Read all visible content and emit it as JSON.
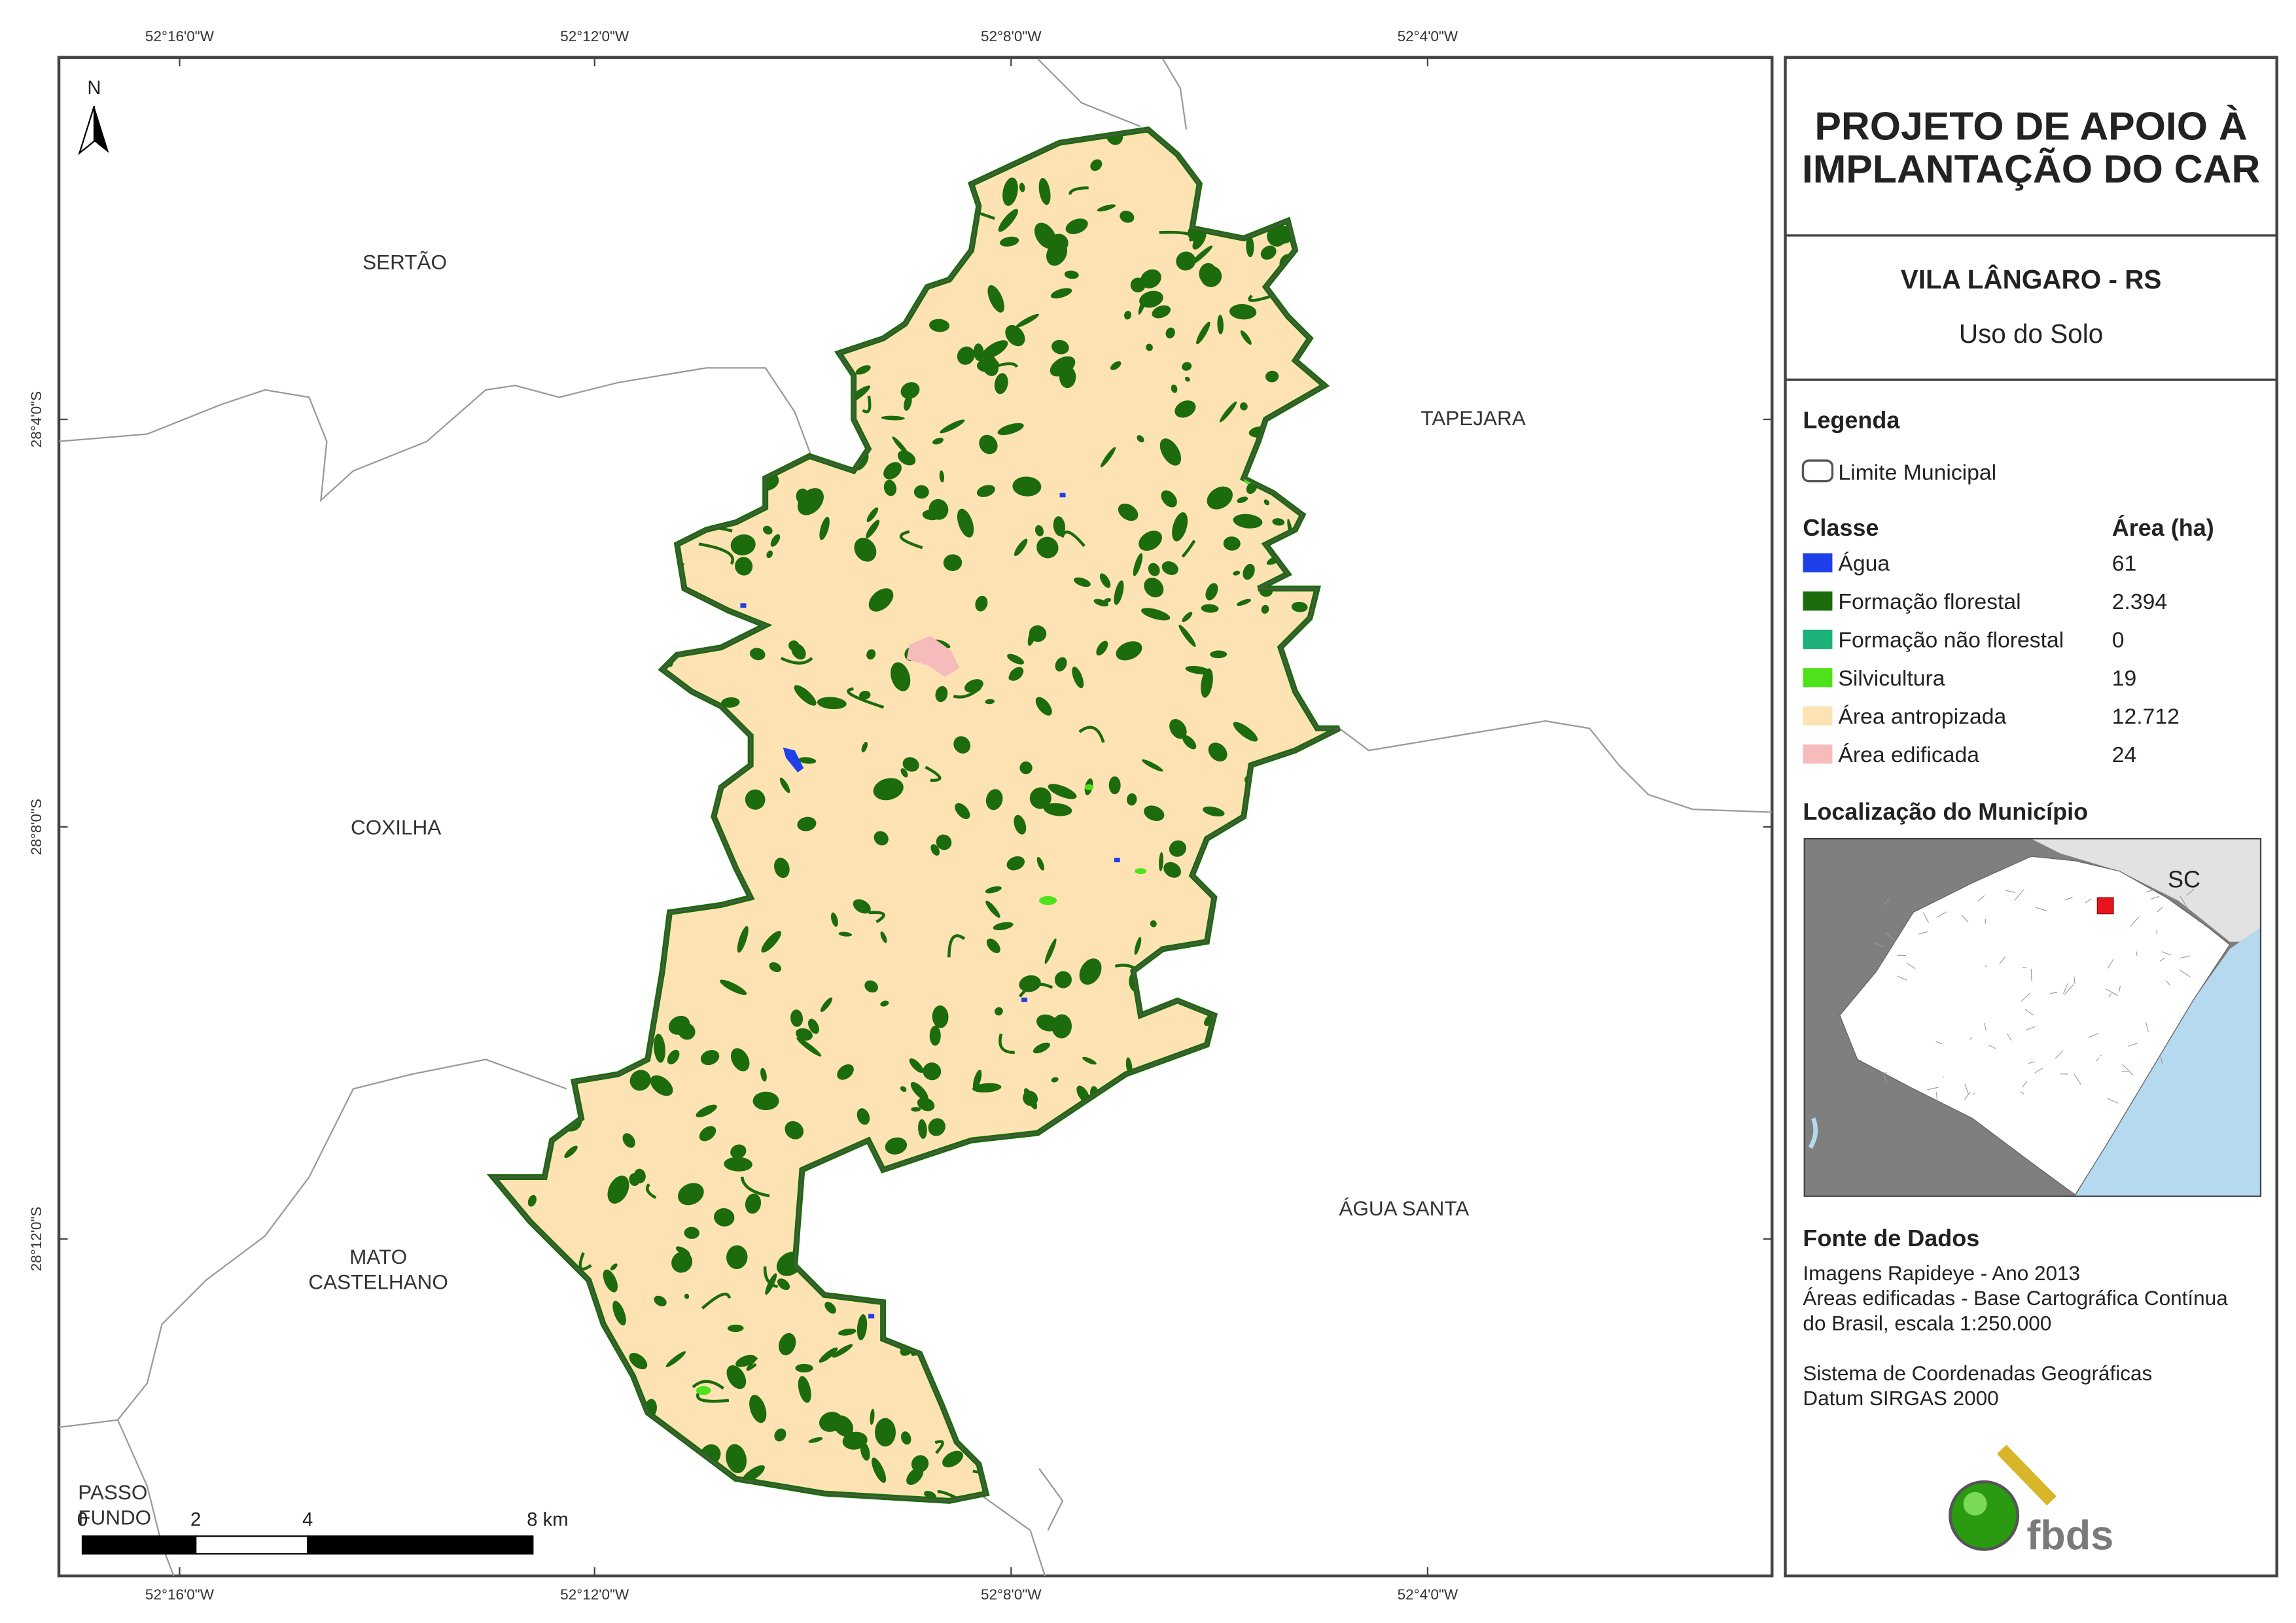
{
  "header": {
    "title_lines": [
      "PROJETO DE APOIO À",
      "IMPLANTAÇÃO DO CAR"
    ],
    "municipality": "VILA LÂNGARO - RS",
    "subtitle": "Uso do Solo"
  },
  "legend": {
    "title": "Legenda",
    "boundary": "Limite Municipal",
    "class_header": "Classe",
    "area_header": "Área (ha)",
    "classes": [
      {
        "name": "Água",
        "area": "61",
        "color": "#1f3fe8"
      },
      {
        "name": "Formação florestal",
        "area": "2.394",
        "color": "#1c6b0c"
      },
      {
        "name": "Formação não florestal",
        "area": "0",
        "color": "#1cb07a"
      },
      {
        "name": "Silvicultura",
        "area": "19",
        "color": "#4ee21a"
      },
      {
        "name": "Área antropizada",
        "area": "12.712",
        "color": "#fde3b4"
      },
      {
        "name": "Área edificada",
        "area": "24",
        "color": "#f6bcbc"
      }
    ]
  },
  "inset": {
    "title": "Localização do Município",
    "label": "SC"
  },
  "sources": {
    "title": "Fonte de Dados",
    "lines": [
      "Imagens Rapideye - Ano 2013",
      "Áreas edificadas - Base Cartográfica Contínua",
      "do Brasil, escala 1:250.000",
      "Sistema de Coordenadas Geográficas",
      "Datum SIRGAS 2000"
    ]
  },
  "logo": "fbds",
  "map": {
    "north": "N",
    "graticule_x": [
      "52°16'0\"W",
      "52°12'0\"W",
      "52°8'0\"W",
      "52°4'0\"W"
    ],
    "graticule_y": [
      "28°4'0\"S",
      "28°8'0\"S",
      "28°12'0\"S"
    ],
    "places": [
      [
        "SERTÃO"
      ],
      [
        "TAPEJARA"
      ],
      [
        "COXILHA"
      ],
      [
        "MATO",
        "CASTELHANO"
      ],
      [
        "ÁGUA SANTA"
      ],
      [
        "PASSO",
        "FUNDO"
      ]
    ],
    "scale_labels": [
      "0",
      "2",
      "4",
      "8 km"
    ]
  }
}
